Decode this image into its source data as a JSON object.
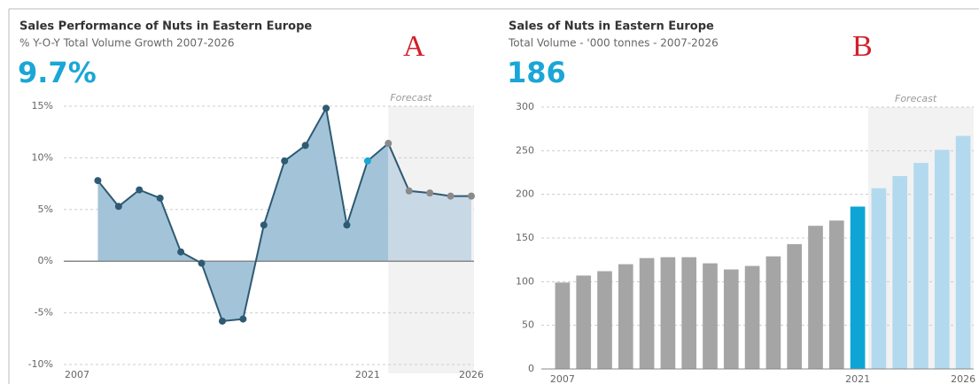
{
  "chart_data": [
    {
      "type": "line",
      "title": "Sales Performance of Nuts in Eastern Europe",
      "subtitle": "% Y-O-Y Total Volume Growth 2007-2026",
      "headline": "9.7%",
      "annotation": "Forecast",
      "panel_label": "A",
      "x": [
        2008,
        2009,
        2010,
        2011,
        2012,
        2013,
        2014,
        2015,
        2016,
        2017,
        2018,
        2019,
        2020,
        2021,
        2022,
        2023,
        2024,
        2025,
        2026
      ],
      "values": [
        7.8,
        5.3,
        6.9,
        6.1,
        0.9,
        -0.2,
        -5.8,
        -5.6,
        3.5,
        9.7,
        11.2,
        14.8,
        3.5,
        9.7,
        11.4,
        6.8,
        6.6,
        6.3,
        6.3
      ],
      "xlim": [
        2007,
        2026
      ],
      "xticks": [
        2007,
        2021,
        2026
      ],
      "ylim": [
        -10,
        15
      ],
      "yticks": [
        {
          "value": -10,
          "label": "-10%"
        },
        {
          "value": -5,
          "label": "-5%"
        },
        {
          "value": 0,
          "label": "0%"
        },
        {
          "value": 5,
          "label": "5%"
        },
        {
          "value": 10,
          "label": "10%"
        },
        {
          "value": 15,
          "label": "15%"
        }
      ],
      "forecast_from": 2022,
      "highlight": 2021,
      "color": "#2e5a73",
      "highlight_color": "#1aa6d6",
      "forecast_color": "#8a8a8a",
      "grid": true
    },
    {
      "type": "bar",
      "title": "Sales of Nuts in Eastern Europe",
      "subtitle": "Total Volume - '000 tonnes - 2007-2026",
      "headline": "186",
      "annotation": "Forecast",
      "panel_label": "B",
      "categories": [
        "2007",
        null,
        null,
        null,
        null,
        null,
        null,
        null,
        null,
        null,
        null,
        null,
        null,
        null,
        "2021",
        null,
        null,
        null,
        null,
        "2026"
      ],
      "values": [
        99,
        107,
        112,
        120,
        127,
        128,
        128,
        121,
        114,
        118,
        129,
        143,
        164,
        170,
        186,
        207,
        221,
        236,
        251,
        267
      ],
      "colors": [
        "#a5a5a5",
        "#a5a5a5",
        "#a5a5a5",
        "#a5a5a5",
        "#a5a5a5",
        "#a5a5a5",
        "#a5a5a5",
        "#a5a5a5",
        "#a5a5a5",
        "#a5a5a5",
        "#a5a5a5",
        "#a5a5a5",
        "#a5a5a5",
        "#a5a5a5",
        "#0ea5d6",
        "#b3d9ee",
        "#b3d9ee",
        "#b3d9ee",
        "#b3d9ee",
        "#b3d9ee"
      ],
      "ylim": [
        0,
        300
      ],
      "yticks": [
        0,
        50,
        100,
        150,
        200,
        250,
        300
      ],
      "forecast_from_index": 15,
      "highlight_index": 14,
      "highlight_color": "#1aa6d6",
      "grid": true
    }
  ]
}
